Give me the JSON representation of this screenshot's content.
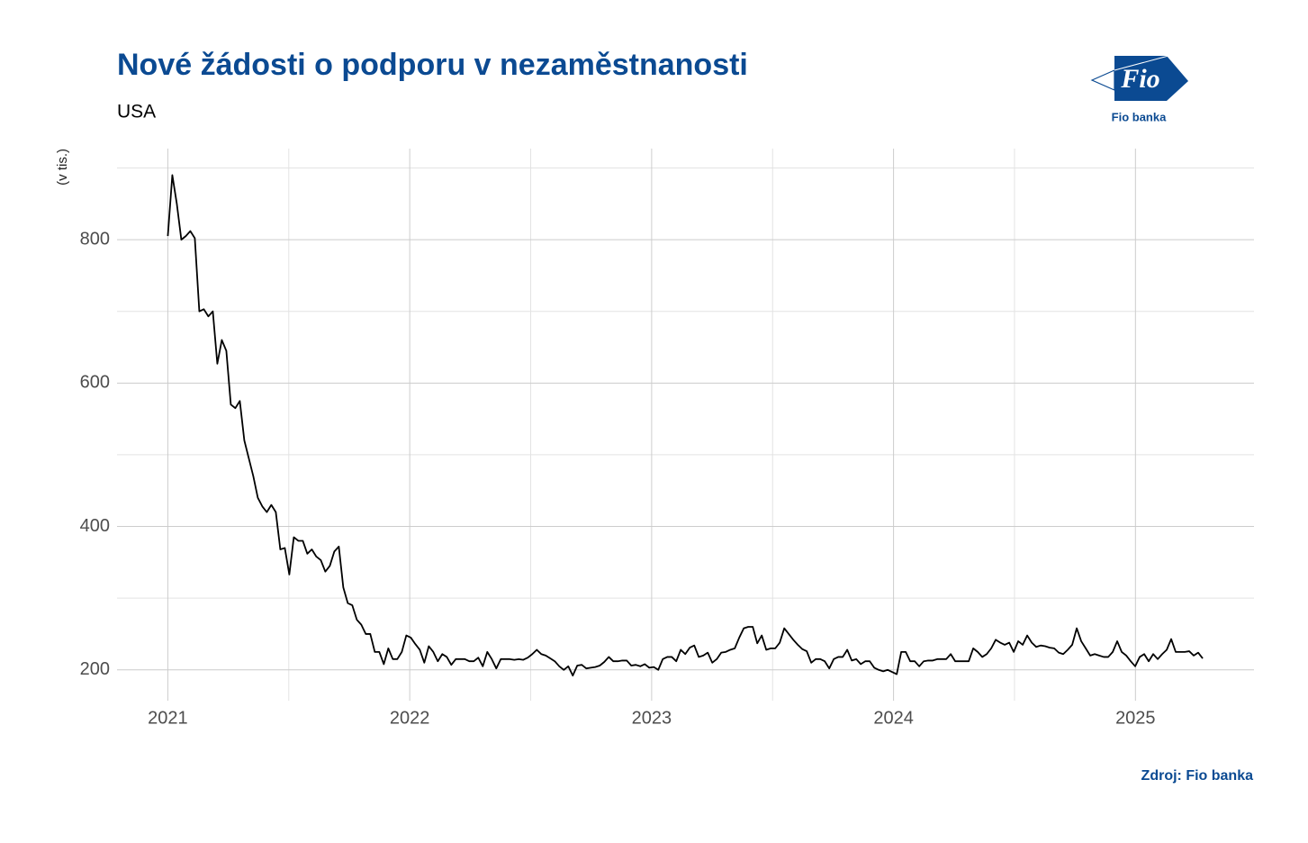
{
  "chart_data": {
    "type": "line",
    "title": "Nové žádosti o podporu v nezaměstnanosti",
    "subtitle": "USA",
    "y_label": "(v tis.)",
    "source": "Zdroj: Fio banka",
    "color": "#000000",
    "grid": true,
    "xlim": [
      2020.79,
      2025.49
    ],
    "xticks": [
      2021,
      2022,
      2023,
      2024,
      2025
    ],
    "x_minor_ticks": [
      2021.5,
      2022.5,
      2023.5,
      2024.5
    ],
    "ylim": [
      157,
      927
    ],
    "yticks": [
      200,
      400,
      600,
      800
    ],
    "y_minor_ticks": [
      300,
      500,
      700,
      900
    ],
    "x": [
      2021,
      2021.0186,
      2021.0372,
      2021.0558,
      2021.0744,
      2021.093,
      2021.1116,
      2021.1302,
      2021.1488,
      2021.1674,
      2021.186,
      2021.2046,
      2021.2232,
      2021.2418,
      2021.2604,
      2021.279,
      2021.2976,
      2021.3162,
      2021.3348,
      2021.3534,
      2021.372,
      2021.3906,
      2021.4092,
      2021.4278,
      2021.4464,
      2021.465,
      2021.4836,
      2021.5022,
      2021.5208,
      2021.5394,
      2021.558,
      2021.5766,
      2021.5952,
      2021.6138,
      2021.6324,
      2021.651,
      2021.6696,
      2021.6882,
      2021.7068,
      2021.7254,
      2021.744,
      2021.7626,
      2021.7812,
      2021.7998,
      2021.8184,
      2021.837,
      2021.8556,
      2021.8742,
      2021.8928,
      2021.9114,
      2021.93,
      2021.9486,
      2021.9672,
      2021.9858,
      2022.0044,
      2022.023,
      2022.0416,
      2022.0602,
      2022.0788,
      2022.0974,
      2022.116,
      2022.1346,
      2022.1532,
      2022.1718,
      2022.1904,
      2022.209,
      2022.2276,
      2022.2462,
      2022.2648,
      2022.2834,
      2022.302,
      2022.3206,
      2022.3392,
      2022.3578,
      2022.3764,
      2022.395,
      2022.4136,
      2022.4322,
      2022.4508,
      2022.4694,
      2022.488,
      2022.5066,
      2022.5252,
      2022.5438,
      2022.5624,
      2022.581,
      2022.5996,
      2022.6182,
      2022.6368,
      2022.6554,
      2022.674,
      2022.6926,
      2022.7112,
      2022.7298,
      2022.7484,
      2022.767,
      2022.7856,
      2022.8042,
      2022.8228,
      2022.8414,
      2022.86,
      2022.8786,
      2022.8972,
      2022.9158,
      2022.9344,
      2022.953,
      2022.9716,
      2022.9902,
      2023.0088,
      2023.0274,
      2023.046,
      2023.0646,
      2023.0832,
      2023.1018,
      2023.1204,
      2023.139,
      2023.1576,
      2023.1762,
      2023.1948,
      2023.2134,
      2023.232,
      2023.2506,
      2023.2692,
      2023.2878,
      2023.3064,
      2023.325,
      2023.3436,
      2023.3622,
      2023.3808,
      2023.3994,
      2023.418,
      2023.4366,
      2023.4552,
      2023.4738,
      2023.4924,
      2023.511,
      2023.5296,
      2023.5482,
      2023.5668,
      2023.5854,
      2023.604,
      2023.6226,
      2023.6412,
      2023.6598,
      2023.6784,
      2023.697,
      2023.7156,
      2023.7342,
      2023.7528,
      2023.7714,
      2023.79,
      2023.8086,
      2023.8272,
      2023.8458,
      2023.8644,
      2023.883,
      2023.9016,
      2023.9202,
      2023.9388,
      2023.9574,
      2023.976,
      2023.9946,
      2024.0132,
      2024.0318,
      2024.0504,
      2024.069,
      2024.0876,
      2024.1062,
      2024.1248,
      2024.1434,
      2024.162,
      2024.1806,
      2024.1992,
      2024.2178,
      2024.2364,
      2024.255,
      2024.2736,
      2024.2922,
      2024.3108,
      2024.3294,
      2024.348,
      2024.3666,
      2024.3852,
      2024.4038,
      2024.4224,
      2024.441,
      2024.4596,
      2024.4782,
      2024.4968,
      2024.5154,
      2024.534,
      2024.5526,
      2024.5712,
      2024.5898,
      2024.6084,
      2024.627,
      2024.6456,
      2024.6642,
      2024.6828,
      2024.7014,
      2024.72,
      2024.7386,
      2024.7572,
      2024.7758,
      2024.7944,
      2024.813,
      2024.8316,
      2024.8502,
      2024.8688,
      2024.8874,
      2024.906,
      2024.9246,
      2024.9432,
      2024.9618,
      2024.9804,
      2024.999,
      2025.0176,
      2025.0362,
      2025.0548,
      2025.0734,
      2025.092,
      2025.1106,
      2025.1292,
      2025.1478,
      2025.1664,
      2025.185,
      2025.2036,
      2025.2222,
      2025.2408,
      2025.2594,
      2025.278
    ],
    "values": [
      805,
      890,
      850,
      800,
      805,
      812,
      802,
      700,
      703,
      693,
      700,
      627,
      660,
      645,
      570,
      565,
      575,
      520,
      495,
      470,
      440,
      428,
      420,
      430,
      420,
      368,
      370,
      333,
      385,
      380,
      380,
      362,
      368,
      358,
      353,
      337,
      345,
      365,
      372,
      315,
      293,
      290,
      270,
      263,
      250,
      250,
      225,
      225,
      208,
      230,
      215,
      215,
      225,
      248,
      245,
      236,
      228,
      210,
      233,
      225,
      212,
      222,
      218,
      207,
      215,
      215,
      215,
      212,
      212,
      217,
      205,
      225,
      215,
      202,
      215,
      215,
      215,
      214,
      215,
      214,
      217,
      222,
      228,
      222,
      220,
      216,
      212,
      205,
      200,
      205,
      192,
      206,
      207,
      202,
      203,
      204,
      206,
      211,
      218,
      212,
      212,
      213,
      213,
      206,
      207,
      205,
      208,
      203,
      204,
      200,
      215,
      218,
      218,
      212,
      228,
      222,
      231,
      234,
      218,
      220,
      224,
      210,
      215,
      224,
      225,
      228,
      230,
      245,
      258,
      260,
      260,
      237,
      248,
      228,
      230,
      230,
      238,
      258,
      250,
      242,
      235,
      229,
      226,
      210,
      215,
      215,
      212,
      202,
      215,
      218,
      218,
      228,
      213,
      215,
      208,
      212,
      212,
      203,
      200,
      198,
      200,
      197,
      194,
      225,
      225,
      212,
      212,
      205,
      212,
      213,
      213,
      215,
      215,
      215,
      222,
      212,
      212,
      212,
      212,
      230,
      225,
      218,
      222,
      230,
      242,
      238,
      235,
      238,
      225,
      240,
      235,
      248,
      238,
      232,
      234,
      233,
      231,
      230,
      224,
      222,
      228,
      235,
      258,
      240,
      230,
      220,
      222,
      220,
      218,
      218,
      225,
      240,
      225,
      220,
      212,
      205,
      218,
      222,
      212,
      222,
      215,
      222,
      228,
      243,
      225,
      225,
      225,
      226,
      220,
      224,
      216
    ]
  },
  "logo": {
    "mark": "Fio",
    "name": "Fio banka"
  }
}
